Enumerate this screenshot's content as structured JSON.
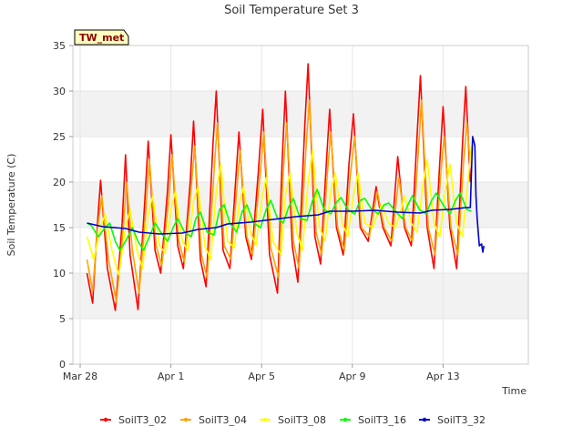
{
  "chart_data": {
    "type": "line",
    "title": "Soil Temperature Set 3",
    "badge": "TW_met",
    "xlabel": "Time",
    "ylabel": "Soil Temperature (C)",
    "ylim": [
      0,
      35
    ],
    "yticks": [
      0,
      5,
      10,
      15,
      20,
      25,
      30,
      35
    ],
    "x_start": "2025-03-28",
    "xlim_days": [
      0,
      18
    ],
    "xticks": [
      {
        "day": 0,
        "label": "Mar 28"
      },
      {
        "day": 4,
        "label": "Apr 1"
      },
      {
        "day": 8,
        "label": "Apr 5"
      },
      {
        "day": 12,
        "label": "Apr 9"
      },
      {
        "day": 16,
        "label": "Apr 13"
      }
    ],
    "grid": true,
    "legend_position": "bottom",
    "series": [
      {
        "name": "SoilT3_02",
        "color": "#ff0000",
        "points": [
          [
            0.3,
            10.0
          ],
          [
            0.55,
            6.7
          ],
          [
            0.75,
            15.0
          ],
          [
            0.9,
            20.2
          ],
          [
            1.2,
            10.5
          ],
          [
            1.55,
            5.9
          ],
          [
            1.85,
            15.5
          ],
          [
            2.0,
            23.0
          ],
          [
            2.2,
            12.0
          ],
          [
            2.55,
            6.0
          ],
          [
            2.85,
            18.0
          ],
          [
            3.0,
            24.5
          ],
          [
            3.3,
            12.5
          ],
          [
            3.55,
            10.0
          ],
          [
            3.85,
            19.0
          ],
          [
            4.0,
            25.2
          ],
          [
            4.3,
            13.0
          ],
          [
            4.55,
            10.5
          ],
          [
            4.85,
            20.0
          ],
          [
            5.0,
            26.7
          ],
          [
            5.3,
            11.5
          ],
          [
            5.55,
            8.5
          ],
          [
            5.85,
            24.0
          ],
          [
            6.0,
            30.0
          ],
          [
            6.3,
            12.5
          ],
          [
            6.6,
            10.5
          ],
          [
            6.85,
            20.0
          ],
          [
            7.0,
            25.5
          ],
          [
            7.3,
            14.0
          ],
          [
            7.55,
            11.5
          ],
          [
            7.85,
            21.0
          ],
          [
            8.05,
            28.0
          ],
          [
            8.35,
            12.0
          ],
          [
            8.7,
            7.8
          ],
          [
            8.9,
            22.0
          ],
          [
            9.05,
            30.0
          ],
          [
            9.35,
            13.0
          ],
          [
            9.6,
            9.0
          ],
          [
            9.9,
            26.0
          ],
          [
            10.05,
            33.0
          ],
          [
            10.35,
            14.0
          ],
          [
            10.6,
            11.0
          ],
          [
            10.85,
            22.0
          ],
          [
            11.0,
            28.0
          ],
          [
            11.3,
            15.0
          ],
          [
            11.6,
            12.0
          ],
          [
            11.85,
            22.0
          ],
          [
            12.05,
            27.5
          ],
          [
            12.35,
            15.0
          ],
          [
            12.7,
            13.5
          ],
          [
            12.9,
            17.0
          ],
          [
            13.05,
            19.5
          ],
          [
            13.35,
            15.0
          ],
          [
            13.7,
            13.0
          ],
          [
            13.85,
            18.0
          ],
          [
            14.0,
            22.8
          ],
          [
            14.3,
            15.0
          ],
          [
            14.6,
            13.0
          ],
          [
            14.85,
            25.0
          ],
          [
            15.0,
            31.7
          ],
          [
            15.3,
            15.0
          ],
          [
            15.6,
            10.5
          ],
          [
            15.85,
            22.0
          ],
          [
            16.0,
            28.3
          ],
          [
            16.3,
            15.0
          ],
          [
            16.6,
            10.5
          ],
          [
            16.85,
            24.0
          ],
          [
            17.0,
            30.5
          ],
          [
            17.2,
            20.0
          ]
        ]
      },
      {
        "name": "SoilT3_04",
        "color": "#ffa500",
        "points": [
          [
            0.3,
            11.5
          ],
          [
            0.55,
            8.0
          ],
          [
            0.75,
            14.5
          ],
          [
            0.95,
            18.5
          ],
          [
            1.25,
            11.5
          ],
          [
            1.6,
            6.8
          ],
          [
            1.9,
            15.0
          ],
          [
            2.05,
            20.0
          ],
          [
            2.3,
            12.5
          ],
          [
            2.6,
            7.8
          ],
          [
            2.9,
            17.0
          ],
          [
            3.05,
            22.5
          ],
          [
            3.35,
            13.0
          ],
          [
            3.6,
            10.8
          ],
          [
            3.9,
            18.0
          ],
          [
            4.05,
            23.0
          ],
          [
            4.35,
            13.5
          ],
          [
            4.6,
            11.2
          ],
          [
            4.9,
            19.5
          ],
          [
            5.05,
            24.0
          ],
          [
            5.35,
            12.0
          ],
          [
            5.6,
            9.5
          ],
          [
            5.9,
            21.0
          ],
          [
            6.05,
            26.5
          ],
          [
            6.35,
            13.0
          ],
          [
            6.65,
            11.5
          ],
          [
            6.9,
            19.0
          ],
          [
            7.05,
            23.5
          ],
          [
            7.35,
            14.0
          ],
          [
            7.6,
            12.0
          ],
          [
            7.9,
            20.0
          ],
          [
            8.1,
            25.5
          ],
          [
            8.4,
            12.8
          ],
          [
            8.75,
            9.5
          ],
          [
            8.95,
            21.0
          ],
          [
            9.1,
            26.5
          ],
          [
            9.4,
            13.5
          ],
          [
            9.65,
            10.5
          ],
          [
            9.95,
            23.5
          ],
          [
            10.1,
            29.0
          ],
          [
            10.4,
            14.5
          ],
          [
            10.65,
            12.0
          ],
          [
            10.9,
            21.0
          ],
          [
            11.05,
            25.5
          ],
          [
            11.35,
            15.0
          ],
          [
            11.65,
            12.5
          ],
          [
            11.9,
            20.5
          ],
          [
            12.1,
            25.0
          ],
          [
            12.4,
            15.0
          ],
          [
            12.75,
            14.0
          ],
          [
            12.95,
            17.0
          ],
          [
            13.1,
            19.0
          ],
          [
            13.4,
            15.0
          ],
          [
            13.75,
            13.5
          ],
          [
            13.9,
            17.0
          ],
          [
            14.05,
            20.5
          ],
          [
            14.35,
            15.0
          ],
          [
            14.65,
            13.5
          ],
          [
            14.9,
            23.0
          ],
          [
            15.05,
            29.0
          ],
          [
            15.35,
            15.0
          ],
          [
            15.65,
            12.0
          ],
          [
            15.9,
            21.0
          ],
          [
            16.05,
            25.0
          ],
          [
            16.35,
            15.0
          ],
          [
            16.65,
            12.0
          ],
          [
            16.9,
            22.0
          ],
          [
            17.05,
            26.5
          ],
          [
            17.2,
            22.0
          ]
        ]
      },
      {
        "name": "SoilT3_08",
        "color": "#ffff00",
        "points": [
          [
            0.3,
            14.0
          ],
          [
            0.6,
            11.5
          ],
          [
            0.9,
            15.0
          ],
          [
            1.1,
            16.5
          ],
          [
            1.4,
            12.5
          ],
          [
            1.7,
            9.8
          ],
          [
            2.0,
            15.0
          ],
          [
            2.2,
            17.0
          ],
          [
            2.5,
            12.5
          ],
          [
            2.75,
            10.5
          ],
          [
            3.0,
            16.5
          ],
          [
            3.2,
            18.5
          ],
          [
            3.5,
            13.0
          ],
          [
            3.75,
            12.2
          ],
          [
            4.0,
            17.0
          ],
          [
            4.2,
            19.0
          ],
          [
            4.5,
            13.5
          ],
          [
            4.75,
            12.5
          ],
          [
            5.0,
            18.0
          ],
          [
            5.2,
            19.5
          ],
          [
            5.5,
            13.0
          ],
          [
            5.75,
            11.5
          ],
          [
            6.0,
            19.0
          ],
          [
            6.2,
            22.0
          ],
          [
            6.5,
            13.5
          ],
          [
            6.8,
            12.8
          ],
          [
            7.0,
            17.5
          ],
          [
            7.2,
            19.5
          ],
          [
            7.5,
            14.5
          ],
          [
            7.75,
            13.0
          ],
          [
            8.0,
            18.0
          ],
          [
            8.2,
            20.5
          ],
          [
            8.5,
            13.5
          ],
          [
            8.85,
            12.0
          ],
          [
            9.05,
            18.5
          ],
          [
            9.25,
            21.0
          ],
          [
            9.55,
            14.5
          ],
          [
            9.8,
            12.5
          ],
          [
            10.05,
            20.0
          ],
          [
            10.25,
            23.5
          ],
          [
            10.55,
            15.0
          ],
          [
            10.8,
            13.5
          ],
          [
            11.05,
            19.0
          ],
          [
            11.25,
            21.0
          ],
          [
            11.55,
            15.5
          ],
          [
            11.8,
            14.0
          ],
          [
            12.05,
            18.5
          ],
          [
            12.25,
            21.0
          ],
          [
            12.55,
            15.5
          ],
          [
            12.9,
            15.0
          ],
          [
            13.1,
            16.5
          ],
          [
            13.3,
            17.5
          ],
          [
            13.6,
            15.5
          ],
          [
            13.9,
            15.0
          ],
          [
            14.1,
            16.5
          ],
          [
            14.3,
            18.5
          ],
          [
            14.6,
            15.5
          ],
          [
            14.85,
            14.5
          ],
          [
            15.1,
            19.5
          ],
          [
            15.3,
            22.5
          ],
          [
            15.6,
            15.5
          ],
          [
            15.85,
            14.0
          ],
          [
            16.1,
            19.0
          ],
          [
            16.3,
            22.0
          ],
          [
            16.6,
            15.5
          ],
          [
            16.85,
            14.0
          ],
          [
            17.1,
            20.0
          ],
          [
            17.25,
            24.0
          ]
        ]
      },
      {
        "name": "SoilT3_16",
        "color": "#00ff00",
        "points": [
          [
            0.3,
            15.5
          ],
          [
            0.5,
            15.2
          ],
          [
            0.8,
            14.0
          ],
          [
            1.1,
            15.0
          ],
          [
            1.3,
            15.5
          ],
          [
            1.55,
            13.5
          ],
          [
            1.75,
            12.5
          ],
          [
            2.0,
            13.5
          ],
          [
            2.3,
            15.0
          ],
          [
            2.55,
            13.5
          ],
          [
            2.8,
            12.5
          ],
          [
            3.05,
            14.0
          ],
          [
            3.3,
            15.5
          ],
          [
            3.55,
            14.5
          ],
          [
            3.85,
            13.5
          ],
          [
            4.1,
            15.0
          ],
          [
            4.3,
            16.0
          ],
          [
            4.6,
            14.5
          ],
          [
            4.9,
            14.0
          ],
          [
            5.1,
            16.0
          ],
          [
            5.3,
            16.7
          ],
          [
            5.6,
            14.5
          ],
          [
            5.9,
            14.2
          ],
          [
            6.15,
            17.0
          ],
          [
            6.35,
            17.5
          ],
          [
            6.6,
            15.5
          ],
          [
            6.9,
            14.5
          ],
          [
            7.15,
            16.8
          ],
          [
            7.35,
            17.5
          ],
          [
            7.65,
            15.5
          ],
          [
            7.95,
            15.0
          ],
          [
            8.2,
            17.0
          ],
          [
            8.4,
            18.0
          ],
          [
            8.7,
            16.0
          ],
          [
            8.95,
            15.5
          ],
          [
            9.2,
            17.3
          ],
          [
            9.4,
            18.2
          ],
          [
            9.7,
            16.0
          ],
          [
            10.0,
            15.8
          ],
          [
            10.25,
            18.0
          ],
          [
            10.45,
            19.2
          ],
          [
            10.75,
            17.0
          ],
          [
            11.05,
            16.5
          ],
          [
            11.3,
            17.8
          ],
          [
            11.5,
            18.3
          ],
          [
            11.8,
            17.0
          ],
          [
            12.1,
            16.5
          ],
          [
            12.35,
            18.0
          ],
          [
            12.55,
            18.2
          ],
          [
            12.85,
            17.0
          ],
          [
            13.15,
            16.5
          ],
          [
            13.4,
            17.5
          ],
          [
            13.6,
            17.7
          ],
          [
            13.9,
            16.8
          ],
          [
            14.2,
            16.0
          ],
          [
            14.45,
            17.5
          ],
          [
            14.65,
            18.5
          ],
          [
            14.95,
            17.0
          ],
          [
            15.25,
            16.5
          ],
          [
            15.5,
            18.0
          ],
          [
            15.7,
            18.8
          ],
          [
            16.0,
            17.5
          ],
          [
            16.3,
            16.5
          ],
          [
            16.55,
            18.0
          ],
          [
            16.75,
            18.8
          ],
          [
            17.05,
            17.0
          ],
          [
            17.25,
            16.8
          ]
        ]
      },
      {
        "name": "SoilT3_32",
        "color": "#0000cc",
        "points": [
          [
            0.3,
            15.5
          ],
          [
            1.0,
            15.1
          ],
          [
            2.0,
            14.9
          ],
          [
            2.6,
            14.5
          ],
          [
            3.5,
            14.3
          ],
          [
            4.5,
            14.4
          ],
          [
            5.2,
            14.8
          ],
          [
            6.0,
            15.0
          ],
          [
            6.5,
            15.4
          ],
          [
            7.5,
            15.6
          ],
          [
            8.5,
            15.9
          ],
          [
            9.5,
            16.2
          ],
          [
            10.5,
            16.4
          ],
          [
            11.0,
            16.8
          ],
          [
            12.0,
            16.8
          ],
          [
            13.0,
            16.9
          ],
          [
            14.0,
            16.7
          ],
          [
            15.0,
            16.6
          ],
          [
            15.5,
            16.9
          ],
          [
            16.3,
            17.0
          ],
          [
            17.0,
            17.2
          ],
          [
            17.2,
            17.2
          ],
          [
            17.3,
            25.0
          ],
          [
            17.4,
            24.0
          ],
          [
            17.45,
            18.5
          ],
          [
            17.5,
            16.0
          ],
          [
            17.6,
            13.0
          ],
          [
            17.7,
            13.2
          ],
          [
            17.75,
            12.3
          ],
          [
            17.8,
            13.0
          ]
        ]
      }
    ]
  }
}
